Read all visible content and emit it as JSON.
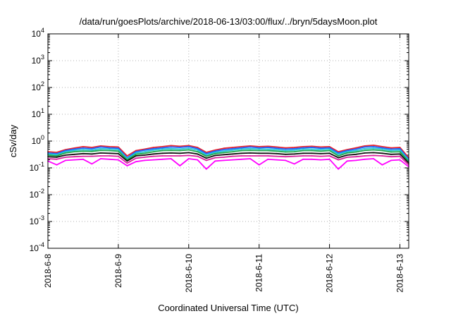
{
  "chart_data": {
    "type": "line",
    "title": "/data/run/goesPlots/archive/2018-06-13/03:00/flux/../bryn/5daysMoon.plot",
    "xlabel": "Coordinated Universal Time (UTC)",
    "ylabel": "cSv/day",
    "yscale": "log",
    "ylim": [
      0.0001,
      10000
    ],
    "xlim": [
      "2018-06-08 00:00",
      "2018-06-13 03:00"
    ],
    "grid": true,
    "x_ticks": [
      "2018-6-8",
      "2018-6-9",
      "2018-6-10",
      "2018-6-11",
      "2018-6-12",
      "2018-6-13"
    ],
    "y_ticks": [
      {
        "base": "10",
        "exp": "-4"
      },
      {
        "base": "10",
        "exp": "-3"
      },
      {
        "base": "10",
        "exp": "-2"
      },
      {
        "base": "10",
        "exp": "-1"
      },
      {
        "base": "10",
        "exp": "0"
      },
      {
        "base": "10",
        "exp": "1"
      },
      {
        "base": "10",
        "exp": "2"
      },
      {
        "base": "10",
        "exp": "3"
      },
      {
        "base": "10",
        "exp": "4"
      }
    ],
    "x_hours": [
      0,
      3,
      6,
      9,
      12,
      15,
      18,
      21,
      24,
      27,
      30,
      33,
      36,
      39,
      42,
      45,
      48,
      51,
      54,
      57,
      60,
      63,
      66,
      69,
      72,
      75,
      78,
      81,
      84,
      87,
      90,
      93,
      96,
      99,
      102,
      105,
      108,
      111,
      114,
      117,
      120,
      123
    ],
    "series": [
      {
        "color": "#e8232e",
        "values": [
          0.4,
          0.38,
          0.48,
          0.55,
          0.62,
          0.58,
          0.66,
          0.62,
          0.6,
          0.28,
          0.44,
          0.5,
          0.58,
          0.62,
          0.68,
          0.64,
          0.68,
          0.58,
          0.38,
          0.46,
          0.54,
          0.58,
          0.62,
          0.66,
          0.62,
          0.64,
          0.6,
          0.56,
          0.58,
          0.62,
          0.64,
          0.6,
          0.62,
          0.4,
          0.48,
          0.56,
          0.66,
          0.7,
          0.62,
          0.56,
          0.58,
          0.24
        ]
      },
      {
        "color": "#1c64ff",
        "values": [
          0.36,
          0.34,
          0.44,
          0.5,
          0.55,
          0.52,
          0.6,
          0.56,
          0.54,
          0.24,
          0.4,
          0.46,
          0.52,
          0.56,
          0.6,
          0.58,
          0.62,
          0.52,
          0.34,
          0.42,
          0.48,
          0.52,
          0.56,
          0.6,
          0.56,
          0.58,
          0.54,
          0.5,
          0.52,
          0.56,
          0.58,
          0.54,
          0.56,
          0.36,
          0.44,
          0.5,
          0.6,
          0.62,
          0.56,
          0.5,
          0.52,
          0.21
        ]
      },
      {
        "color": "#27c6d6",
        "values": [
          0.33,
          0.31,
          0.4,
          0.45,
          0.48,
          0.46,
          0.52,
          0.5,
          0.48,
          0.22,
          0.36,
          0.4,
          0.46,
          0.5,
          0.52,
          0.5,
          0.54,
          0.46,
          0.3,
          0.38,
          0.42,
          0.46,
          0.5,
          0.52,
          0.5,
          0.5,
          0.48,
          0.44,
          0.46,
          0.5,
          0.5,
          0.48,
          0.5,
          0.32,
          0.4,
          0.44,
          0.52,
          0.54,
          0.5,
          0.44,
          0.46,
          0.19
        ]
      },
      {
        "color": "#1fa84a",
        "values": [
          0.3,
          0.28,
          0.36,
          0.4,
          0.42,
          0.41,
          0.45,
          0.44,
          0.42,
          0.2,
          0.32,
          0.35,
          0.4,
          0.44,
          0.45,
          0.44,
          0.47,
          0.4,
          0.27,
          0.34,
          0.37,
          0.4,
          0.44,
          0.45,
          0.44,
          0.44,
          0.42,
          0.39,
          0.4,
          0.44,
          0.44,
          0.42,
          0.44,
          0.28,
          0.36,
          0.39,
          0.45,
          0.47,
          0.44,
          0.39,
          0.4,
          0.17
        ]
      },
      {
        "color": "#111111",
        "values": [
          0.26,
          0.25,
          0.3,
          0.32,
          0.34,
          0.33,
          0.36,
          0.35,
          0.34,
          0.18,
          0.28,
          0.3,
          0.33,
          0.35,
          0.36,
          0.35,
          0.37,
          0.33,
          0.23,
          0.29,
          0.31,
          0.33,
          0.35,
          0.36,
          0.35,
          0.35,
          0.34,
          0.32,
          0.33,
          0.35,
          0.35,
          0.34,
          0.35,
          0.24,
          0.3,
          0.32,
          0.36,
          0.37,
          0.35,
          0.32,
          0.33,
          0.15
        ]
      },
      {
        "color": "#d8219b",
        "values": [
          0.22,
          0.21,
          0.25,
          0.26,
          0.27,
          0.27,
          0.28,
          0.28,
          0.27,
          0.15,
          0.23,
          0.25,
          0.27,
          0.28,
          0.28,
          0.28,
          0.29,
          0.27,
          0.19,
          0.24,
          0.25,
          0.27,
          0.28,
          0.28,
          0.28,
          0.28,
          0.27,
          0.26,
          0.27,
          0.28,
          0.28,
          0.27,
          0.28,
          0.2,
          0.25,
          0.26,
          0.28,
          0.29,
          0.28,
          0.26,
          0.27,
          0.13
        ]
      },
      {
        "color": "#ff00ff",
        "values": [
          0.18,
          0.13,
          0.19,
          0.2,
          0.21,
          0.14,
          0.22,
          0.21,
          0.2,
          0.12,
          0.17,
          0.19,
          0.2,
          0.21,
          0.22,
          0.12,
          0.22,
          0.2,
          0.09,
          0.18,
          0.19,
          0.2,
          0.21,
          0.22,
          0.13,
          0.21,
          0.2,
          0.19,
          0.14,
          0.21,
          0.21,
          0.2,
          0.21,
          0.09,
          0.18,
          0.19,
          0.21,
          0.22,
          0.13,
          0.19,
          0.2,
          0.11
        ]
      }
    ]
  }
}
